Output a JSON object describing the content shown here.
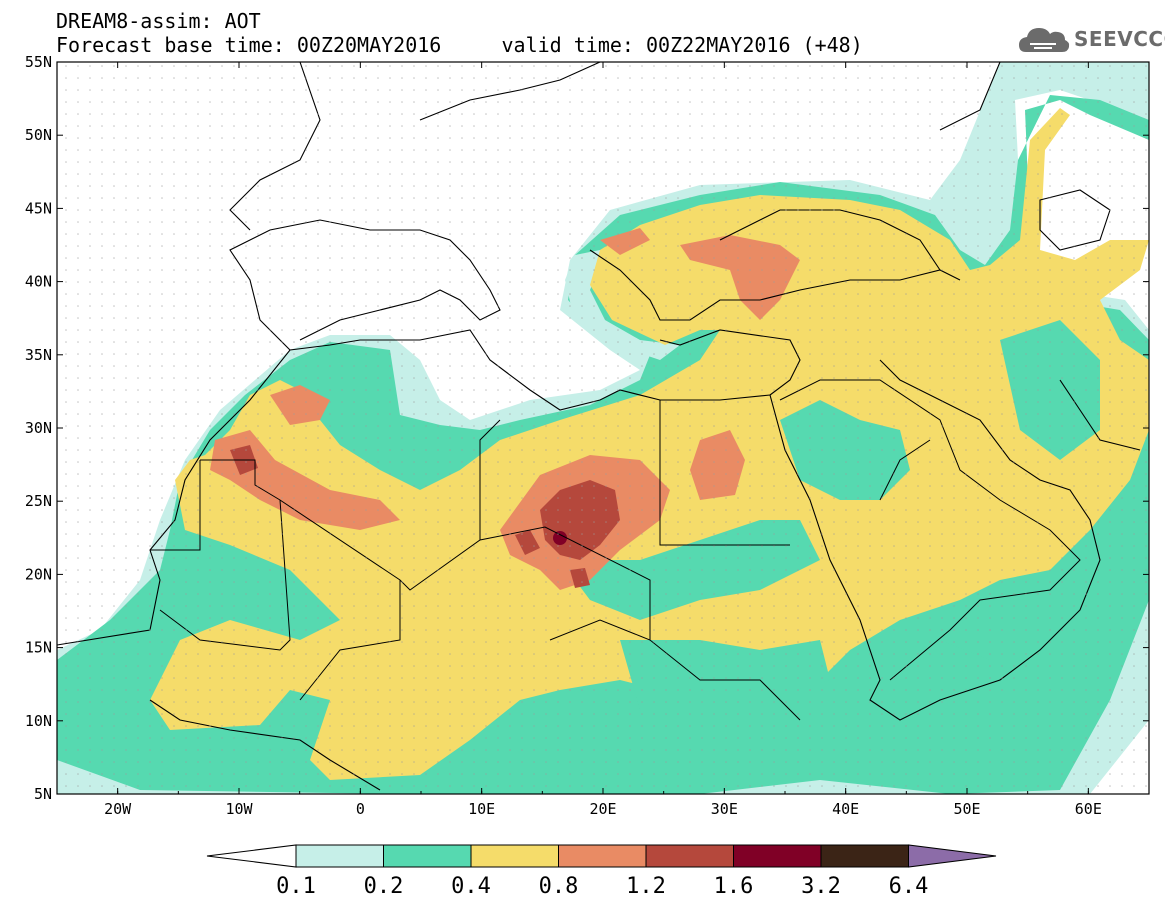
{
  "title_line1": "DREAM8-assim: AOT",
  "title_line2": "Forecast base time: 00Z20MAY2016     valid time: 00Z22MAY2016 (+48)",
  "logo_text": "SEEVCCC",
  "map": {
    "lon_range": [
      -25,
      65
    ],
    "lat_range": [
      5,
      55
    ],
    "lon_ticks": [
      "20W",
      "10W",
      "0",
      "10E",
      "20E",
      "30E",
      "40E",
      "50E",
      "60E"
    ],
    "lat_ticks": [
      "55N",
      "50N",
      "45N",
      "40N",
      "35N",
      "30N",
      "25N",
      "20N",
      "15N",
      "10N",
      "5N"
    ]
  },
  "colorbar": {
    "labels": [
      "0.1",
      "0.2",
      "0.4",
      "0.8",
      "1.2",
      "1.6",
      "3.2",
      "6.4"
    ],
    "colors": [
      "#ffffff",
      "#c6efe8",
      "#56d9b0",
      "#f5dc6a",
      "#e98b64",
      "#b5483c",
      "#800026",
      "#3b2416",
      "#8c6ca8"
    ]
  }
}
